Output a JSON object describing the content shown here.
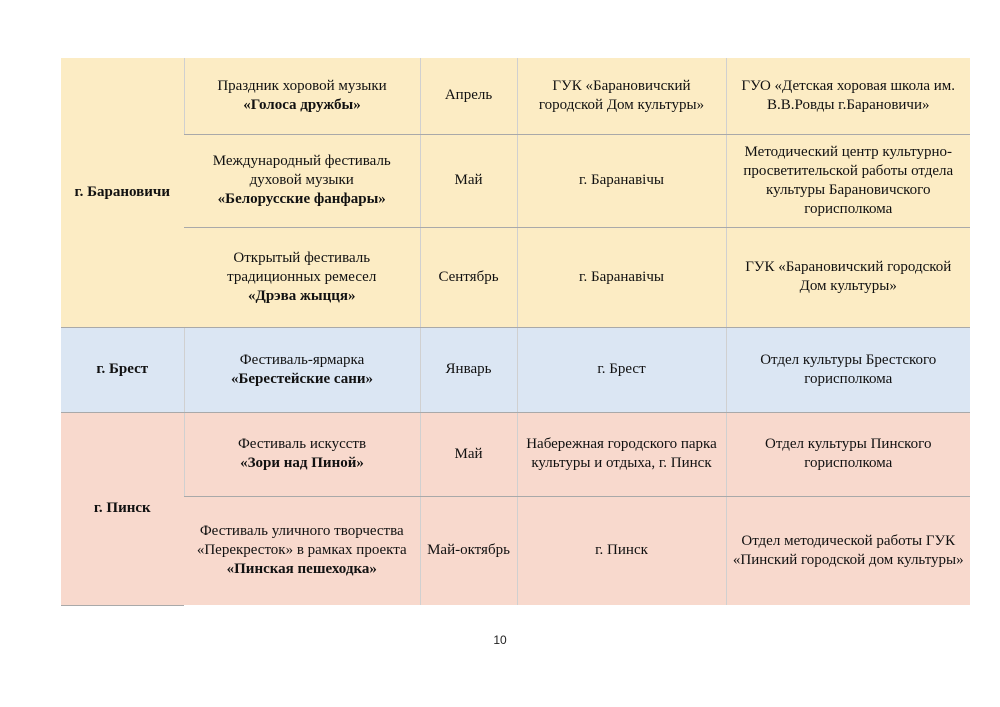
{
  "rows": [
    {
      "city": "г. Барановичи",
      "event_name": "Праздник хоровой музыки",
      "event_title": "«Голоса дружбы»",
      "month": "Апрель",
      "venue": "ГУК «Барановичский городской Дом культуры»",
      "organizer": "ГУО «Детская хоровая школа им. В.В.Ровды г.Барановичи»"
    },
    {
      "city": "",
      "event_name": "Международный фестиваль духовой музыки",
      "event_title": "«Белорусские фанфары»",
      "month": "Май",
      "venue": "г. Баранавічы",
      "organizer": "Методический центр культурно-просветительской работы отдела культуры Барановичского горисполкома"
    },
    {
      "city": "",
      "event_name": "Открытый фестиваль традиционных ремесел",
      "event_title": "«Дрэва жыцця»",
      "month": "Сентябрь",
      "venue": "г. Баранавічы",
      "organizer": "ГУК «Барановичский городской Дом культуры»"
    },
    {
      "city": "г. Брест",
      "event_name": "Фестиваль-ярмарка",
      "event_title": "«Берестейские сани»",
      "month": "Январь",
      "venue": "г. Брест",
      "organizer": "Отдел культуры Брестского горисполкома"
    },
    {
      "city": "г. Пинск",
      "event_name": "Фестиваль искусств",
      "event_title": "«Зори над Пиной»",
      "month": "Май",
      "venue": "Набережная городского парка культуры и отдыха, г. Пинск",
      "organizer": "Отдел культуры Пинского горисполкома"
    },
    {
      "city": "",
      "event_name": "Фестиваль уличного творчества «Перекресток» в рамках проекта",
      "event_title": "«Пинская пешеходка»",
      "month": "Май-октябрь",
      "venue": "г. Пинск",
      "organizer": "Отдел методической работы ГУК «Пинский городской дом культуры»"
    }
  ],
  "colors": {
    "baranovichi": "#fcecc4",
    "brest": "#dbe6f3",
    "pinsk": "#f8d9cd"
  },
  "page_number": "10"
}
